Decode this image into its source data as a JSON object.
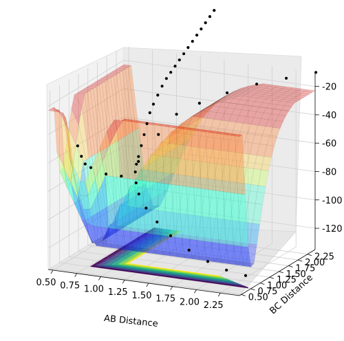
{
  "chart_data": {
    "type": "surface3d",
    "title": "",
    "xlabel": "AB Distance",
    "ylabel": "BC Distance",
    "zlabel": "",
    "x_ticks": [
      "0.50",
      "0.75",
      "1.00",
      "1.25",
      "1.50",
      "1.75",
      "2.00",
      "2.25"
    ],
    "y_ticks": [
      "0.50",
      "0.75",
      "1.00",
      "1.25",
      "1.50",
      "1.75",
      "2.00",
      "2.25"
    ],
    "z_ticks": [
      "-120",
      "-100",
      "-80",
      "-60",
      "-40",
      "-20"
    ],
    "xlim": [
      0.45,
      2.45
    ],
    "ylim": [
      0.45,
      2.45
    ],
    "zlim": [
      -135,
      -10
    ],
    "surface": {
      "colormap": "jet",
      "alpha": 0.35,
      "plateau_energy": -23,
      "well_energy": -126,
      "color_bands": [
        "#0000a0",
        "#1f3cff",
        "#00a0ff",
        "#3cffd0",
        "#c8ff50",
        "#ffd040",
        "#ff7a2a",
        "#e0201a"
      ]
    },
    "contour": {
      "colormap": "viridis",
      "levels": 16,
      "offset": -135
    },
    "trajectory": {
      "marker": "point",
      "color": "#000000",
      "points": [
        [
          2.4,
          0.74,
          -126
        ],
        [
          2.2,
          0.74,
          -124
        ],
        [
          2.0,
          0.75,
          -120
        ],
        [
          1.8,
          0.76,
          -114
        ],
        [
          1.6,
          0.78,
          -106
        ],
        [
          1.45,
          0.8,
          -98
        ],
        [
          1.32,
          0.84,
          -90
        ],
        [
          1.22,
          0.9,
          -82
        ],
        [
          1.16,
          0.98,
          -76
        ],
        [
          1.12,
          1.06,
          -70
        ],
        [
          1.1,
          1.14,
          -66
        ],
        [
          1.09,
          1.22,
          -62
        ],
        [
          1.08,
          1.32,
          -56
        ],
        [
          1.07,
          1.42,
          -50
        ],
        [
          1.06,
          1.52,
          -44
        ],
        [
          1.05,
          1.62,
          -38
        ],
        [
          1.04,
          1.74,
          -34
        ],
        [
          1.03,
          1.88,
          -30
        ],
        [
          1.02,
          2.02,
          -26
        ],
        [
          1.01,
          2.16,
          -23
        ],
        [
          1.0,
          2.3,
          -21
        ],
        [
          0.99,
          2.44,
          -19
        ],
        [
          0.98,
          2.58,
          -17
        ],
        [
          0.97,
          2.72,
          -15
        ],
        [
          0.96,
          2.86,
          -13
        ],
        [
          0.95,
          3.0,
          -11
        ],
        [
          0.94,
          3.14,
          -9
        ],
        [
          0.93,
          3.28,
          -7
        ],
        [
          0.92,
          3.42,
          -5
        ],
        [
          0.91,
          3.56,
          -3
        ],
        [
          0.9,
          3.7,
          -1
        ],
        [
          0.62,
          0.8,
          -52
        ],
        [
          0.6,
          0.95,
          -62
        ],
        [
          0.58,
          1.1,
          -70
        ],
        [
          0.56,
          1.3,
          -76
        ],
        [
          0.62,
          1.55,
          -84
        ],
        [
          0.7,
          1.75,
          -88
        ],
        [
          0.8,
          1.95,
          -80
        ],
        [
          0.95,
          2.1,
          -62
        ],
        [
          1.1,
          2.2,
          -48
        ],
        [
          1.3,
          2.3,
          -40
        ],
        [
          1.55,
          2.4,
          -32
        ],
        [
          1.8,
          2.55,
          -26
        ],
        [
          2.05,
          2.7,
          -22
        ],
        [
          2.3,
          2.85,
          -18
        ],
        [
          2.55,
          3.0,
          -14
        ]
      ]
    }
  }
}
